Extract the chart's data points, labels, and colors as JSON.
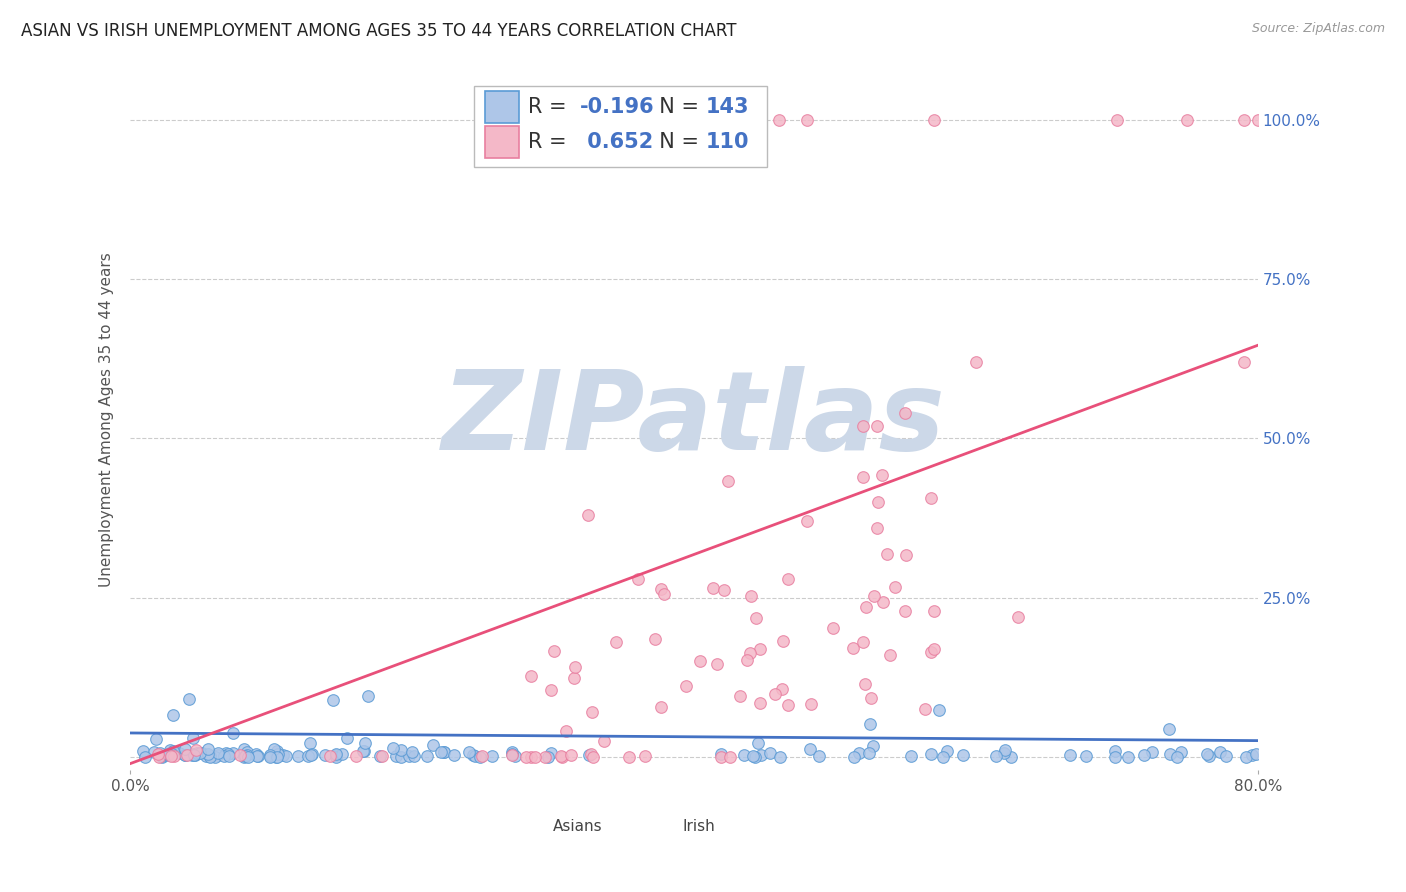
{
  "title": "ASIAN VS IRISH UNEMPLOYMENT AMONG AGES 35 TO 44 YEARS CORRELATION CHART",
  "source": "Source: ZipAtlas.com",
  "ylabel": "Unemployment Among Ages 35 to 44 years",
  "xlim": [
    0.0,
    0.8
  ],
  "ylim": [
    -0.02,
    1.08
  ],
  "ytick_labels_right": [
    "",
    "25.0%",
    "50.0%",
    "75.0%",
    "100.0%"
  ],
  "yticks_right": [
    0.0,
    0.25,
    0.5,
    0.75,
    1.0
  ],
  "grid_color": "#cccccc",
  "asian_color": "#aec6e8",
  "asian_edge_color": "#5b9bd5",
  "irish_color": "#f4b8c8",
  "irish_edge_color": "#e87fa0",
  "asian_R": -0.196,
  "asian_N": 143,
  "irish_R": 0.652,
  "irish_N": 110,
  "asian_line_color": "#4472c4",
  "irish_line_color": "#e8507a",
  "watermark_text": "ZIPatlas",
  "watermark_color": "#ccd8e8",
  "legend_label_color": "#333333",
  "legend_value_color": "#4472c4",
  "background_color": "#ffffff",
  "title_fontsize": 12,
  "label_fontsize": 11,
  "tick_fontsize": 11,
  "legend_fontsize": 15
}
